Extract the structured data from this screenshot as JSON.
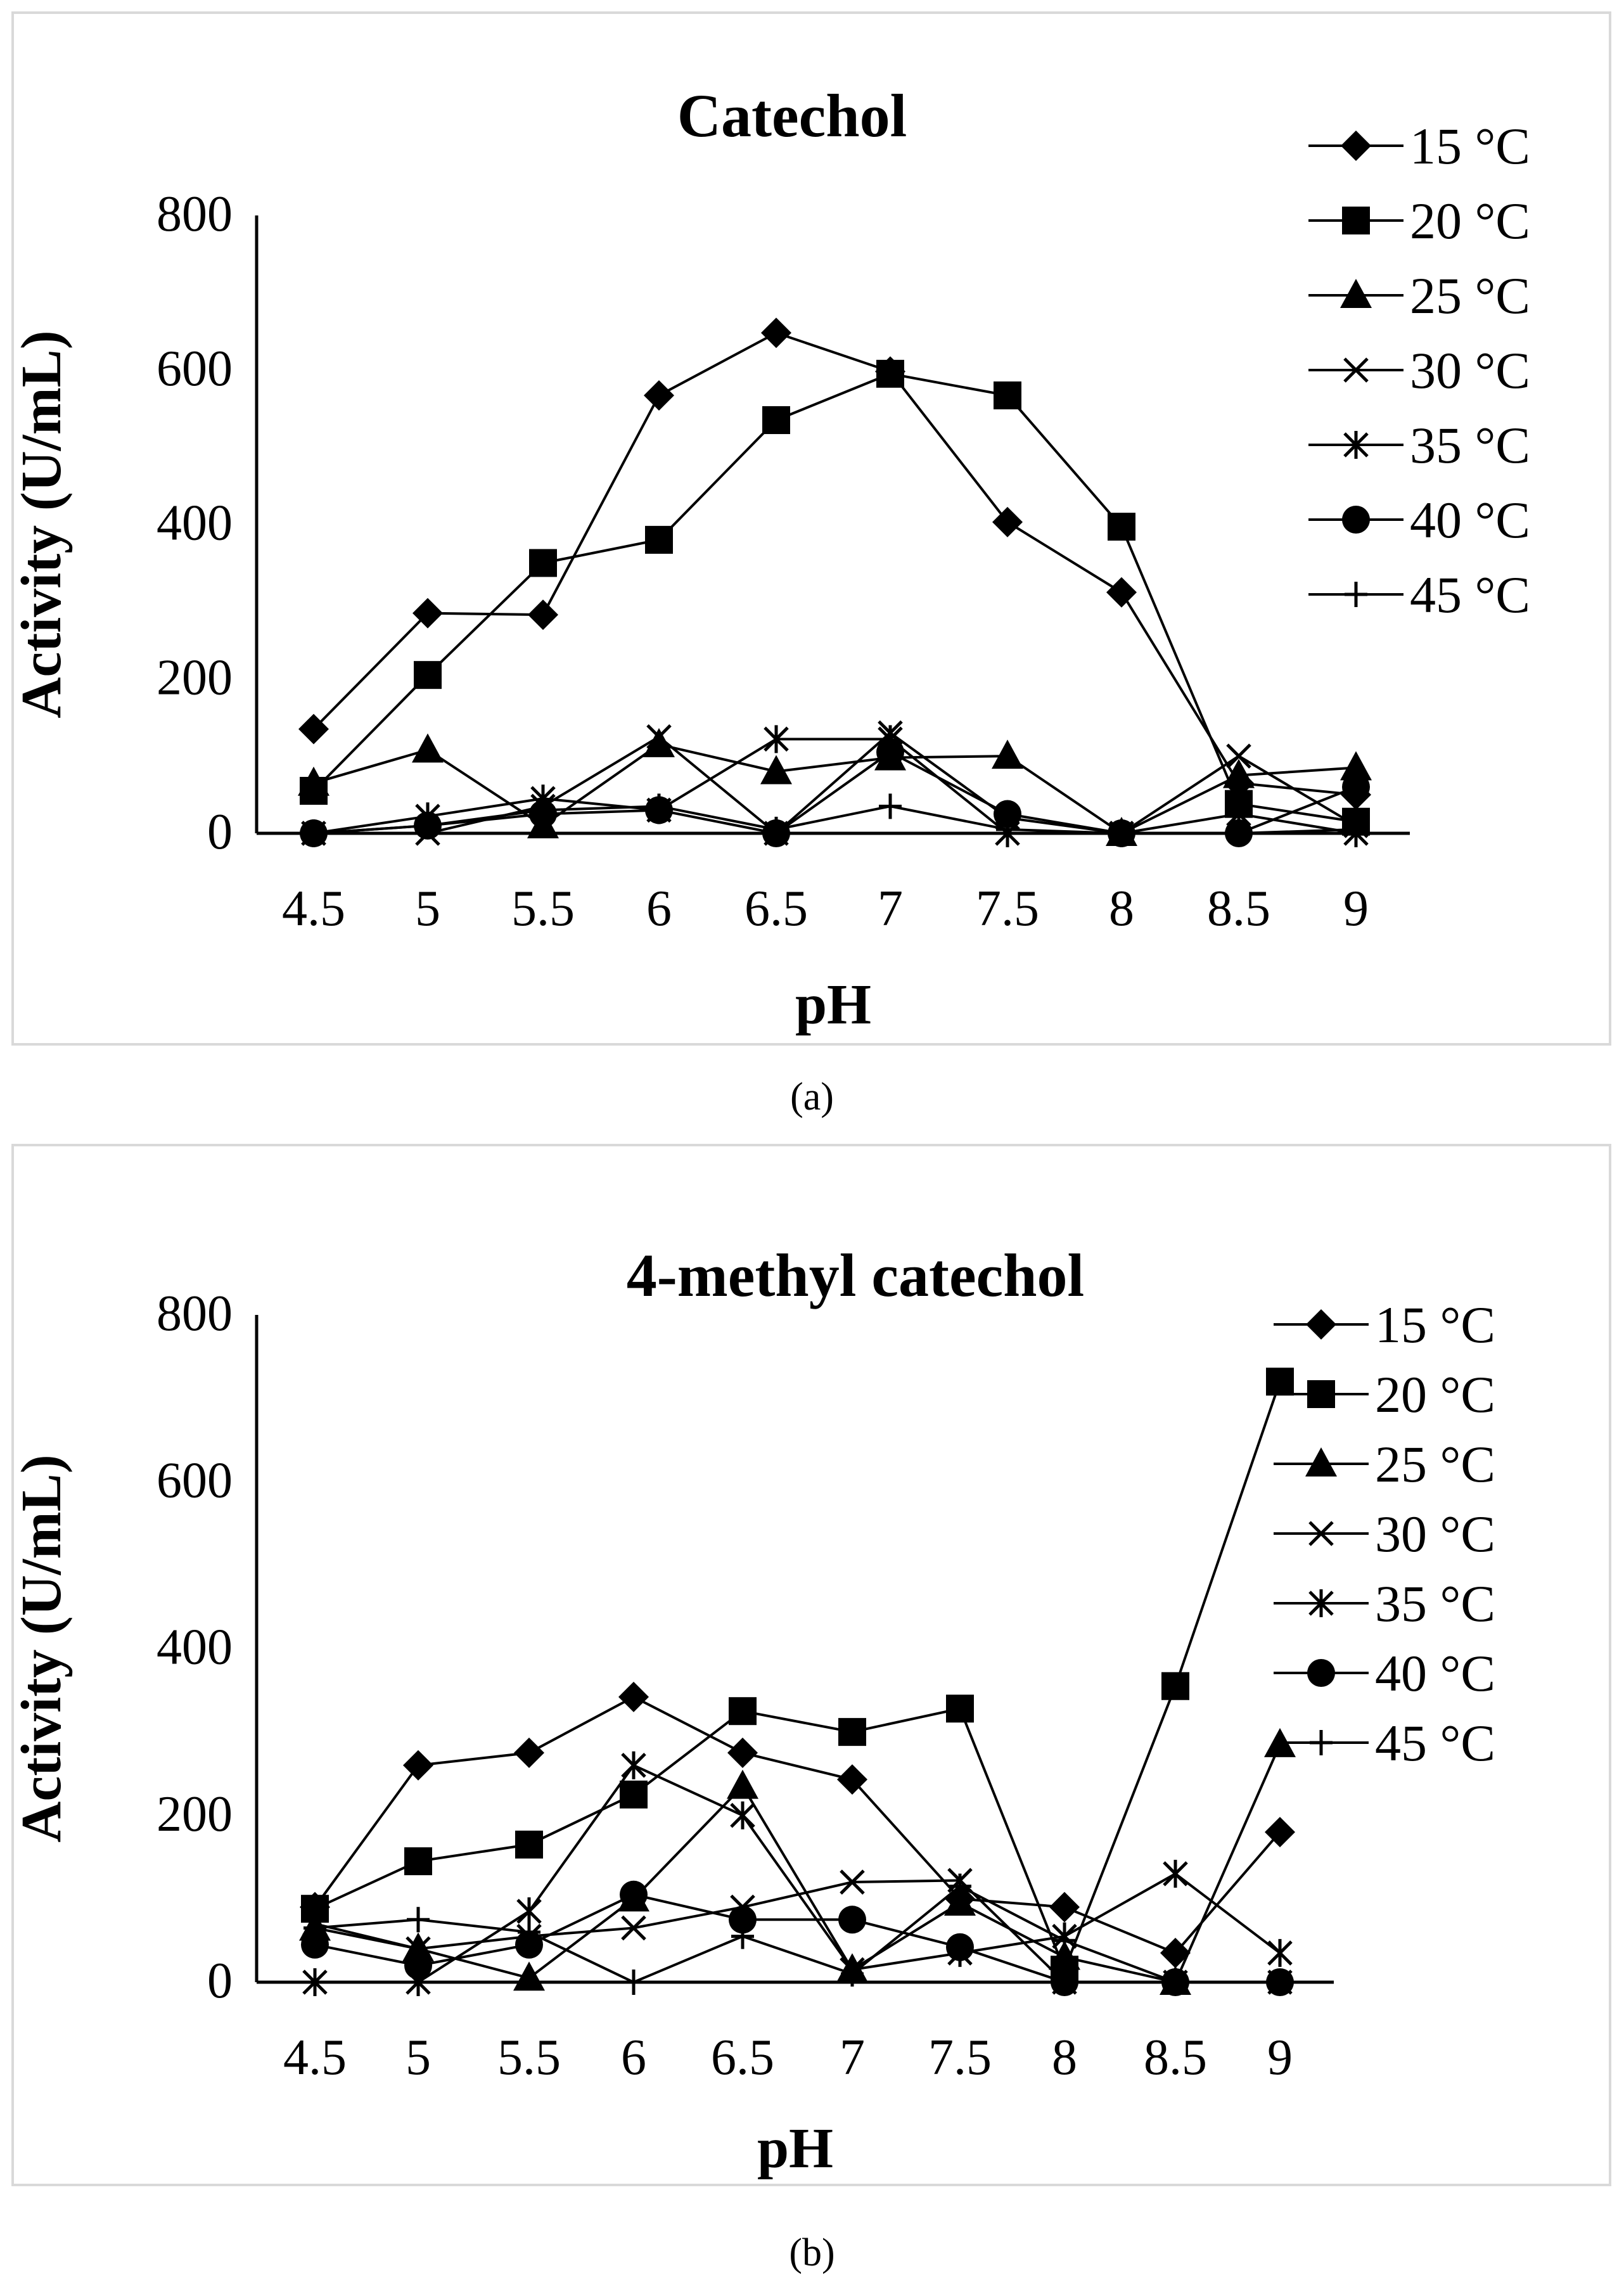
{
  "figure": {
    "caption_a": "(a)",
    "caption_b": "(b)"
  },
  "chart_data": [
    {
      "type": "line",
      "title": "Catechol",
      "xlabel": "pH",
      "ylabel": "Activity (U/mL)",
      "categories": [
        "4.5",
        "5",
        "5.5",
        "6",
        "6.5",
        "7",
        "7.5",
        "8",
        "8.5",
        "9"
      ],
      "ylim": [
        0,
        800
      ],
      "yticks": [
        "0",
        "200",
        "400",
        "600",
        "800"
      ],
      "legend_position": "right",
      "series": [
        {
          "name": "15 °C",
          "marker": "diamond",
          "values": [
            135,
            285,
            283,
            567,
            648,
            598,
            403,
            312,
            65,
            50
          ]
        },
        {
          "name": "20 °C",
          "marker": "square",
          "values": [
            55,
            205,
            350,
            380,
            535,
            595,
            567,
            397,
            38,
            15
          ]
        },
        {
          "name": "25 °C",
          "marker": "triangle",
          "values": [
            65,
            108,
            10,
            115,
            80,
            98,
            100,
            0,
            75,
            85
          ]
        },
        {
          "name": "30 °C",
          "marker": "x",
          "values": [
            0,
            0,
            35,
            125,
            0,
            130,
            20,
            0,
            100,
            10
          ]
        },
        {
          "name": "35 °C",
          "marker": "star",
          "values": [
            0,
            22,
            45,
            30,
            122,
            122,
            0,
            0,
            25,
            0
          ]
        },
        {
          "name": "40 °C",
          "marker": "circle",
          "values": [
            0,
            10,
            25,
            30,
            0,
            105,
            25,
            0,
            0,
            60
          ]
        },
        {
          "name": "45 °C",
          "marker": "plus",
          "values": [
            0,
            10,
            30,
            35,
            5,
            35,
            5,
            0,
            0,
            5
          ]
        }
      ]
    },
    {
      "type": "line",
      "title": "4-methyl catechol",
      "xlabel": "pH",
      "ylabel": "Activity (U/mL)",
      "categories": [
        "4.5",
        "5",
        "5.5",
        "6",
        "6.5",
        "7",
        "7.5",
        "8",
        "8.5",
        "9"
      ],
      "ylim": [
        0,
        800
      ],
      "yticks": [
        "0",
        "200",
        "400",
        "600",
        "800"
      ],
      "legend_position": "right",
      "series": [
        {
          "name": "15 °C",
          "marker": "diamond",
          "values": [
            90,
            260,
            275,
            342,
            275,
            243,
            100,
            90,
            35,
            180
          ]
        },
        {
          "name": "20 °C",
          "marker": "square",
          "values": [
            88,
            145,
            165,
            225,
            325,
            300,
            328,
            15,
            355,
            720
          ]
        },
        {
          "name": "25 °C",
          "marker": "triangle",
          "values": [
            65,
            40,
            5,
            100,
            235,
            15,
            95,
            30,
            0,
            285
          ]
        },
        {
          "name": "30 °C",
          "marker": "x",
          "values": [
            70,
            40,
            55,
            65,
            90,
            120,
            122,
            0,
            0,
            0
          ]
        },
        {
          "name": "35 °C",
          "marker": "star",
          "values": [
            0,
            0,
            85,
            260,
            200,
            15,
            35,
            55,
            130,
            35
          ]
        },
        {
          "name": "40 °C",
          "marker": "circle",
          "values": [
            45,
            20,
            45,
            105,
            75,
            75,
            42,
            0,
            0,
            0
          ]
        },
        {
          "name": "45 °C",
          "marker": "plus",
          "values": [
            65,
            75,
            60,
            0,
            55,
            10,
            115,
            50,
            0,
            0
          ]
        }
      ]
    }
  ]
}
